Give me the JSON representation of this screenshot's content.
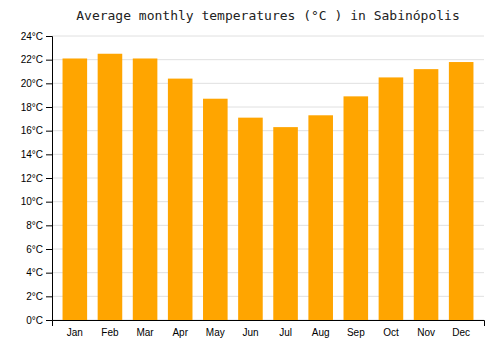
{
  "chart_data": {
    "type": "bar",
    "title": "Average monthly temperatures (°C ) in Sabinópolis",
    "categories": [
      "Jan",
      "Feb",
      "Mar",
      "Apr",
      "May",
      "Jun",
      "Jul",
      "Aug",
      "Sep",
      "Oct",
      "Nov",
      "Dec"
    ],
    "values": [
      22.1,
      22.5,
      22.1,
      20.4,
      18.7,
      17.1,
      16.3,
      17.3,
      18.9,
      20.5,
      21.2,
      21.8
    ],
    "color": "#FFA500",
    "ylim": [
      0,
      24
    ],
    "yticks": [
      {
        "value": 0,
        "label": "0°C"
      },
      {
        "value": 2,
        "label": "2°C"
      },
      {
        "value": 4,
        "label": "4°C"
      },
      {
        "value": 6,
        "label": "6°C"
      },
      {
        "value": 8,
        "label": "8°C"
      },
      {
        "value": 10,
        "label": "10°C"
      },
      {
        "value": 12,
        "label": "12°C"
      },
      {
        "value": 14,
        "label": "14°C"
      },
      {
        "value": 16,
        "label": "16°C"
      },
      {
        "value": 18,
        "label": "18°C"
      },
      {
        "value": 20,
        "label": "20°C"
      },
      {
        "value": 22,
        "label": "22°C"
      },
      {
        "value": 24,
        "label": "24°C"
      }
    ],
    "grid": true
  }
}
